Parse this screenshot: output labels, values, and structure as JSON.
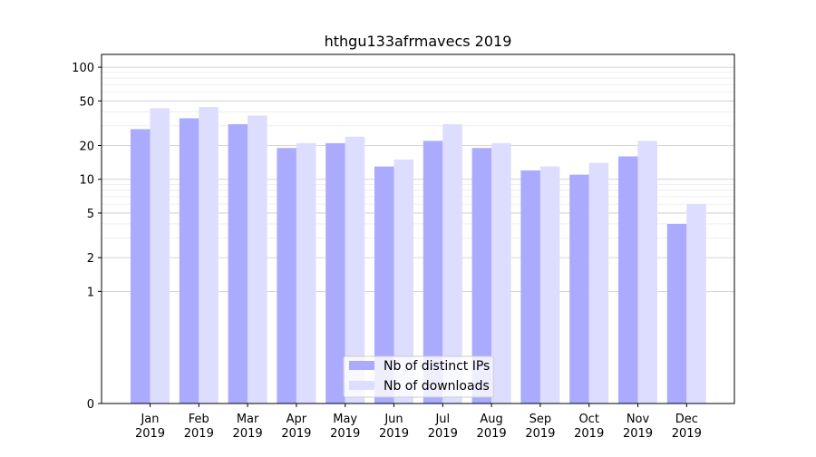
{
  "chart_data": {
    "type": "bar",
    "title": "hthgu133afrmavecs 2019",
    "xlabel": "",
    "ylabel": "",
    "yscale": "symlog",
    "ylim": [
      0,
      130
    ],
    "ytick_values": [
      0,
      1,
      2,
      5,
      10,
      20,
      50,
      100
    ],
    "ytick_labels": [
      "0",
      "1",
      "2",
      "5",
      "10",
      "20",
      "50",
      "100"
    ],
    "grid": true,
    "legend_position": "bottom-center",
    "categories": [
      [
        "Jan",
        "2019"
      ],
      [
        "Feb",
        "2019"
      ],
      [
        "Mar",
        "2019"
      ],
      [
        "Apr",
        "2019"
      ],
      [
        "May",
        "2019"
      ],
      [
        "Jun",
        "2019"
      ],
      [
        "Jul",
        "2019"
      ],
      [
        "Aug",
        "2019"
      ],
      [
        "Sep",
        "2019"
      ],
      [
        "Oct",
        "2019"
      ],
      [
        "Nov",
        "2019"
      ],
      [
        "Dec",
        "2019"
      ]
    ],
    "series": [
      {
        "name": "Nb of distinct IPs",
        "color": "#aaaaff",
        "values": [
          28,
          35,
          31,
          19,
          21,
          13,
          22,
          19,
          12,
          11,
          16,
          4
        ]
      },
      {
        "name": "Nb of downloads",
        "color": "#ddddff",
        "values": [
          43,
          44,
          37,
          21,
          24,
          15,
          31,
          21,
          13,
          14,
          22,
          6
        ]
      }
    ]
  }
}
